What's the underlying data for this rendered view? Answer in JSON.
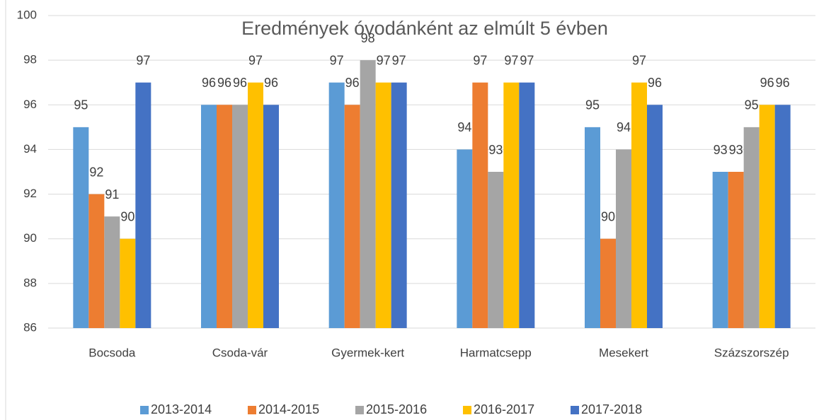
{
  "chart_data": {
    "type": "bar",
    "title": "Eredmények óvodánként az elmúlt 5 évben",
    "categories": [
      "Bocsoda",
      "Csoda-vár",
      "Gyermek-kert",
      "Harmatcsepp",
      "Mesekert",
      "Százszorszép"
    ],
    "series": [
      {
        "name": "2013-2014",
        "color": "#5b9bd5",
        "values": [
          95,
          96,
          97,
          94,
          95,
          93
        ]
      },
      {
        "name": "2014-2015",
        "color": "#ed7d31",
        "values": [
          92,
          96,
          96,
          97,
          90,
          93
        ]
      },
      {
        "name": "2015-2016",
        "color": "#a5a5a5",
        "values": [
          91,
          96,
          98,
          93,
          94,
          95
        ]
      },
      {
        "name": "2016-2017",
        "color": "#ffc000",
        "values": [
          90,
          97,
          97,
          97,
          97,
          96
        ]
      },
      {
        "name": "2017-2018",
        "color": "#4472c4",
        "values": [
          97,
          96,
          97,
          97,
          96,
          96
        ]
      }
    ],
    "ylim": [
      86,
      100
    ],
    "yticks": [
      86,
      88,
      90,
      92,
      94,
      96,
      98,
      100
    ],
    "grid": true,
    "legend": "bottom"
  }
}
